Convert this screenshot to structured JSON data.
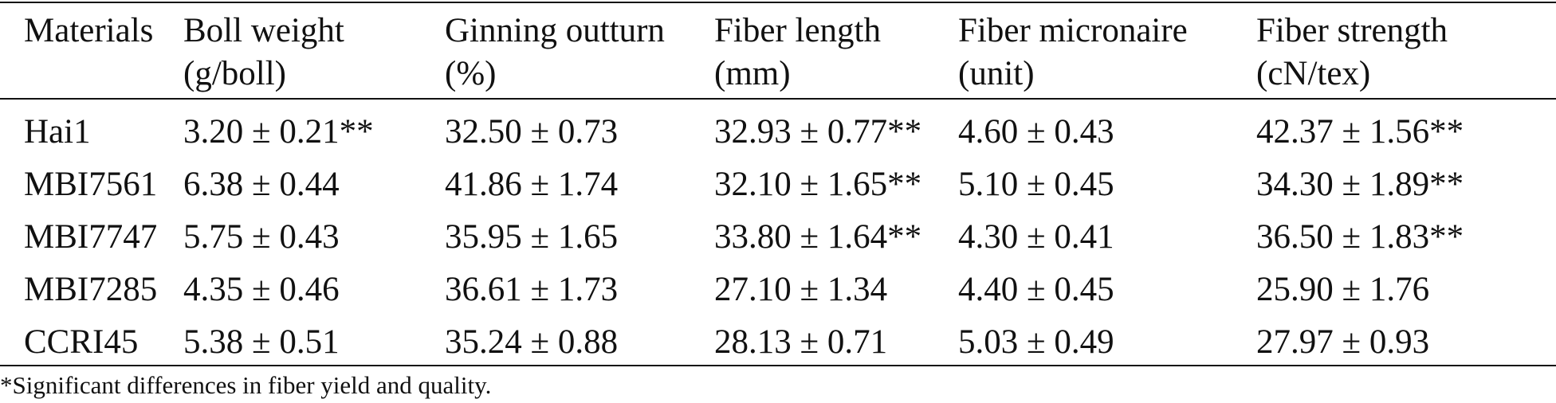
{
  "table": {
    "headers": [
      {
        "line1": "Materials",
        "line2": ""
      },
      {
        "line1": "Boll weight",
        "line2": "(g/boll)"
      },
      {
        "line1": "Ginning outturn",
        "line2": "(%)"
      },
      {
        "line1": "Fiber length",
        "line2": "(mm)"
      },
      {
        "line1": "Fiber micronaire",
        "line2": "(unit)"
      },
      {
        "line1": "Fiber strength",
        "line2": "(cN/tex)"
      }
    ],
    "rows": [
      [
        "Hai1",
        "3.20 ± 0.21**",
        "32.50 ± 0.73",
        "32.93 ± 0.77**",
        "4.60 ± 0.43",
        "42.37 ± 1.56**"
      ],
      [
        "MBI7561",
        "6.38 ± 0.44",
        "41.86 ± 1.74",
        "32.10 ± 1.65**",
        "5.10 ± 0.45",
        "34.30 ± 1.89**"
      ],
      [
        "MBI7747",
        "5.75 ± 0.43",
        "35.95 ± 1.65",
        "33.80 ± 1.64**",
        "4.30 ± 0.41",
        "36.50 ± 1.83**"
      ],
      [
        "MBI7285",
        "4.35 ± 0.46",
        "36.61 ± 1.73",
        "27.10 ± 1.34",
        "4.40 ± 0.45",
        "25.90 ± 1.76"
      ],
      [
        "CCRI45",
        "5.38 ± 0.51",
        "35.24 ± 0.88",
        "28.13 ± 0.71",
        "5.03 ± 0.49",
        "27.97 ± 0.93"
      ]
    ],
    "footnote": "*Significant differences in fiber yield and quality."
  }
}
